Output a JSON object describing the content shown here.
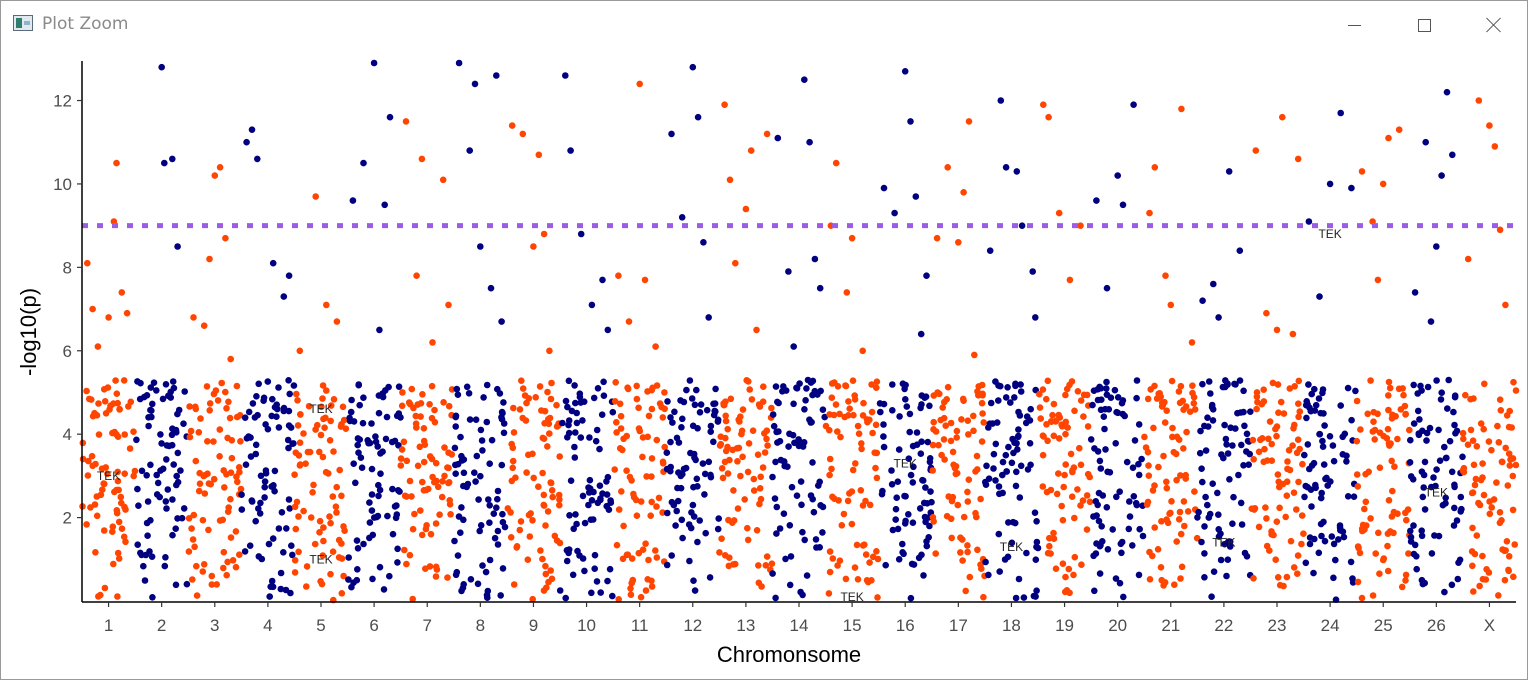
{
  "window": {
    "title": "Plot Zoom",
    "buttons": {
      "minimize": "minimize",
      "maximize": "maximize",
      "close": "close"
    }
  },
  "colors": {
    "odd_chromosome": "#FF4500",
    "even_chromosome": "#000080",
    "threshold": "#9B5DE5"
  },
  "chart_data": {
    "type": "scatter",
    "subtype": "manhattan",
    "xlabel": "Chromonsome",
    "ylabel": "-log10(p)",
    "ylim": [
      0,
      12.9
    ],
    "yticks": [
      2,
      4,
      6,
      8,
      10,
      12
    ],
    "categories": [
      "1",
      "2",
      "3",
      "4",
      "5",
      "6",
      "7",
      "8",
      "9",
      "10",
      "11",
      "12",
      "13",
      "14",
      "15",
      "16",
      "17",
      "18",
      "19",
      "20",
      "21",
      "22",
      "23",
      "24",
      "25",
      "26",
      "X"
    ],
    "threshold": 9,
    "grid": false,
    "legend": "none",
    "series": [
      {
        "category": "1",
        "values": [
          [
            0.1,
            8.1
          ],
          [
            0.2,
            7.0
          ],
          [
            0.3,
            6.1
          ],
          [
            0.5,
            6.8
          ],
          [
            0.6,
            9.1
          ],
          [
            0.65,
            10.5
          ],
          [
            0.75,
            7.4
          ],
          [
            0.85,
            6.9
          ]
        ]
      },
      {
        "category": "2",
        "values": [
          [
            0.5,
            12.8
          ],
          [
            0.55,
            10.5
          ],
          [
            0.7,
            10.6
          ],
          [
            0.8,
            8.5
          ]
        ]
      },
      {
        "category": "3",
        "values": [
          [
            0.1,
            6.8
          ],
          [
            0.3,
            6.6
          ],
          [
            0.4,
            8.2
          ],
          [
            0.5,
            10.2
          ],
          [
            0.6,
            10.4
          ],
          [
            0.7,
            8.7
          ],
          [
            0.8,
            5.8
          ]
        ]
      },
      {
        "category": "4",
        "values": [
          [
            0.1,
            11.0
          ],
          [
            0.2,
            11.3
          ],
          [
            0.3,
            10.6
          ],
          [
            0.6,
            8.1
          ],
          [
            0.8,
            7.3
          ],
          [
            0.9,
            7.8
          ]
        ]
      },
      {
        "category": "5",
        "values": [
          [
            0.1,
            6.0
          ],
          [
            0.4,
            9.7
          ],
          [
            0.6,
            7.1
          ],
          [
            0.8,
            6.7
          ]
        ]
      },
      {
        "category": "6",
        "values": [
          [
            0.1,
            9.6
          ],
          [
            0.3,
            10.5
          ],
          [
            0.5,
            12.9
          ],
          [
            0.6,
            6.5
          ],
          [
            0.7,
            9.5
          ],
          [
            0.8,
            11.6
          ]
        ]
      },
      {
        "category": "7",
        "values": [
          [
            0.1,
            11.5
          ],
          [
            0.3,
            7.8
          ],
          [
            0.4,
            10.6
          ],
          [
            0.6,
            6.2
          ],
          [
            0.8,
            10.1
          ],
          [
            0.9,
            7.1
          ]
        ]
      },
      {
        "category": "8",
        "values": [
          [
            0.1,
            12.9
          ],
          [
            0.3,
            10.8
          ],
          [
            0.4,
            12.4
          ],
          [
            0.5,
            8.5
          ],
          [
            0.7,
            7.5
          ],
          [
            0.8,
            12.6
          ],
          [
            0.9,
            6.7
          ]
        ]
      },
      {
        "category": "9",
        "values": [
          [
            0.1,
            11.4
          ],
          [
            0.3,
            11.2
          ],
          [
            0.5,
            8.5
          ],
          [
            0.6,
            10.7
          ],
          [
            0.7,
            8.8
          ],
          [
            0.8,
            6.0
          ]
        ]
      },
      {
        "category": "10",
        "values": [
          [
            0.1,
            12.6
          ],
          [
            0.2,
            10.8
          ],
          [
            0.4,
            8.8
          ],
          [
            0.6,
            7.1
          ],
          [
            0.8,
            7.7
          ],
          [
            0.9,
            6.5
          ]
        ]
      },
      {
        "category": "11",
        "values": [
          [
            0.1,
            7.8
          ],
          [
            0.3,
            6.7
          ],
          [
            0.5,
            12.4
          ],
          [
            0.6,
            7.7
          ],
          [
            0.8,
            6.1
          ]
        ]
      },
      {
        "category": "12",
        "values": [
          [
            0.1,
            11.2
          ],
          [
            0.3,
            9.2
          ],
          [
            0.5,
            12.8
          ],
          [
            0.6,
            11.6
          ],
          [
            0.7,
            8.6
          ],
          [
            0.8,
            6.8
          ]
        ]
      },
      {
        "category": "13",
        "values": [
          [
            0.1,
            11.9
          ],
          [
            0.2,
            10.1
          ],
          [
            0.3,
            8.1
          ],
          [
            0.5,
            9.4
          ],
          [
            0.6,
            10.8
          ],
          [
            0.7,
            6.5
          ],
          [
            0.9,
            11.2
          ]
        ]
      },
      {
        "category": "14",
        "values": [
          [
            0.1,
            11.1
          ],
          [
            0.3,
            7.9
          ],
          [
            0.4,
            6.1
          ],
          [
            0.6,
            12.5
          ],
          [
            0.7,
            11.0
          ],
          [
            0.8,
            8.2
          ],
          [
            0.9,
            7.5
          ]
        ]
      },
      {
        "category": "15",
        "values": [
          [
            0.1,
            9.0
          ],
          [
            0.2,
            10.5
          ],
          [
            0.4,
            7.4
          ],
          [
            0.5,
            8.7
          ],
          [
            0.7,
            6.0
          ]
        ]
      },
      {
        "category": "16",
        "values": [
          [
            0.1,
            9.9
          ],
          [
            0.3,
            9.3
          ],
          [
            0.5,
            12.7
          ],
          [
            0.6,
            11.5
          ],
          [
            0.7,
            9.7
          ],
          [
            0.8,
            6.4
          ],
          [
            0.9,
            7.8
          ]
        ]
      },
      {
        "category": "17",
        "values": [
          [
            0.1,
            8.7
          ],
          [
            0.3,
            10.4
          ],
          [
            0.5,
            8.6
          ],
          [
            0.6,
            9.8
          ],
          [
            0.7,
            11.5
          ],
          [
            0.8,
            5.9
          ]
        ]
      },
      {
        "category": "18",
        "values": [
          [
            0.1,
            8.4
          ],
          [
            0.3,
            12.0
          ],
          [
            0.4,
            10.4
          ],
          [
            0.6,
            10.3
          ],
          [
            0.7,
            9.0
          ],
          [
            0.9,
            7.9
          ],
          [
            0.95,
            6.8
          ]
        ]
      },
      {
        "category": "19",
        "values": [
          [
            0.1,
            11.9
          ],
          [
            0.2,
            11.6
          ],
          [
            0.4,
            9.3
          ],
          [
            0.6,
            7.7
          ],
          [
            0.8,
            9.0
          ]
        ]
      },
      {
        "category": "20",
        "values": [
          [
            0.1,
            9.6
          ],
          [
            0.3,
            7.5
          ],
          [
            0.5,
            10.2
          ],
          [
            0.6,
            9.5
          ],
          [
            0.8,
            11.9
          ]
        ]
      },
      {
        "category": "21",
        "values": [
          [
            0.1,
            9.3
          ],
          [
            0.2,
            10.4
          ],
          [
            0.4,
            7.8
          ],
          [
            0.5,
            7.1
          ],
          [
            0.7,
            11.8
          ],
          [
            0.9,
            6.2
          ]
        ]
      },
      {
        "category": "22",
        "values": [
          [
            0.1,
            7.2
          ],
          [
            0.3,
            7.6
          ],
          [
            0.4,
            6.8
          ],
          [
            0.6,
            10.3
          ],
          [
            0.8,
            8.4
          ]
        ]
      },
      {
        "category": "23",
        "values": [
          [
            0.1,
            10.8
          ],
          [
            0.3,
            6.9
          ],
          [
            0.5,
            6.5
          ],
          [
            0.6,
            11.6
          ],
          [
            0.8,
            6.4
          ],
          [
            0.9,
            10.6
          ]
        ]
      },
      {
        "category": "24",
        "values": [
          [
            0.1,
            9.1
          ],
          [
            0.3,
            7.3
          ],
          [
            0.5,
            10.0
          ],
          [
            0.7,
            11.7
          ],
          [
            0.9,
            9.9
          ]
        ]
      },
      {
        "category": "25",
        "values": [
          [
            0.1,
            10.3
          ],
          [
            0.3,
            9.1
          ],
          [
            0.4,
            7.7
          ],
          [
            0.5,
            10.0
          ],
          [
            0.6,
            11.1
          ],
          [
            0.8,
            11.3
          ]
        ]
      },
      {
        "category": "26",
        "values": [
          [
            0.1,
            7.4
          ],
          [
            0.3,
            11.0
          ],
          [
            0.4,
            6.7
          ],
          [
            0.5,
            8.5
          ],
          [
            0.6,
            10.2
          ],
          [
            0.7,
            12.2
          ],
          [
            0.8,
            10.7
          ]
        ]
      },
      {
        "category": "X",
        "values": [
          [
            0.1,
            8.2
          ],
          [
            0.3,
            12.0
          ],
          [
            0.5,
            11.4
          ],
          [
            0.6,
            10.9
          ],
          [
            0.7,
            8.9
          ],
          [
            0.8,
            7.1
          ]
        ]
      }
    ],
    "background_band": {
      "max": 5.3,
      "points_per_chromosome": 80,
      "note_source": "dense low-significance points below ~5.3 for every chromosome"
    },
    "annotations": [
      {
        "text": "TEK",
        "category": "1",
        "y": 3.0
      },
      {
        "text": "TEK",
        "category": "5",
        "y": 4.6
      },
      {
        "text": "TEK",
        "category": "5",
        "y": 1.0
      },
      {
        "text": "TEK",
        "category": "16",
        "y": 3.3
      },
      {
        "text": "TEK",
        "category": "15",
        "y": 0.1
      },
      {
        "text": "TEK",
        "category": "18",
        "y": 1.3
      },
      {
        "text": "TEK",
        "category": "22",
        "y": 1.4
      },
      {
        "text": "TEK",
        "category": "24",
        "y": 8.8
      },
      {
        "text": "TEK",
        "category": "26",
        "y": 2.6
      }
    ]
  }
}
